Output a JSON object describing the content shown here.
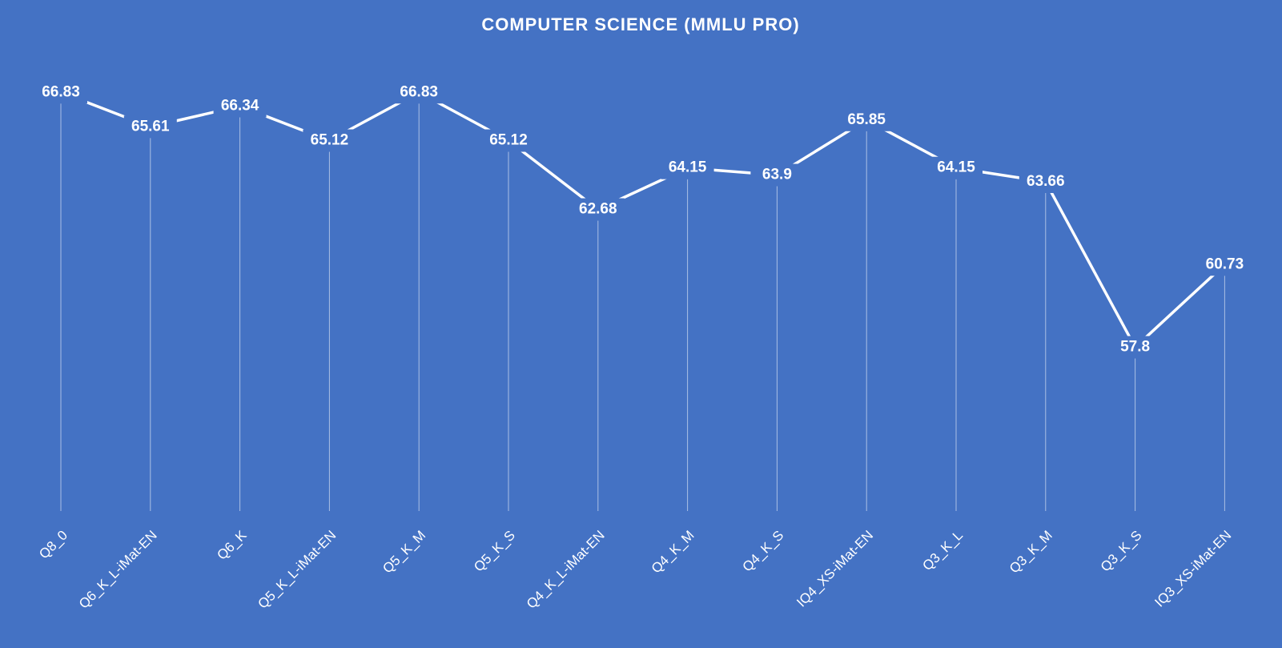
{
  "chart_data": {
    "type": "line",
    "title": "COMPUTER SCIENCE (MMLU PRO)",
    "categories": [
      "Q8_0",
      "Q6_K_L-iMat-EN",
      "Q6_K",
      "Q5_K_L-iMat-EN",
      "Q5_K_M",
      "Q5_K_S",
      "Q4_K_L-iMat-EN",
      "Q4_K_M",
      "Q4_K_S",
      "IQ4_XS-iMat-EN",
      "Q3_K_L",
      "Q3_K_M",
      "Q3_K_S",
      "IQ3_XS-iMat-EN"
    ],
    "values": [
      66.83,
      65.61,
      66.34,
      65.12,
      66.83,
      65.12,
      62.68,
      64.15,
      63.9,
      65.85,
      64.15,
      63.66,
      57.8,
      60.73
    ],
    "color": "#ffffff",
    "ylim": [
      52,
      68
    ],
    "drop_lines": true
  }
}
